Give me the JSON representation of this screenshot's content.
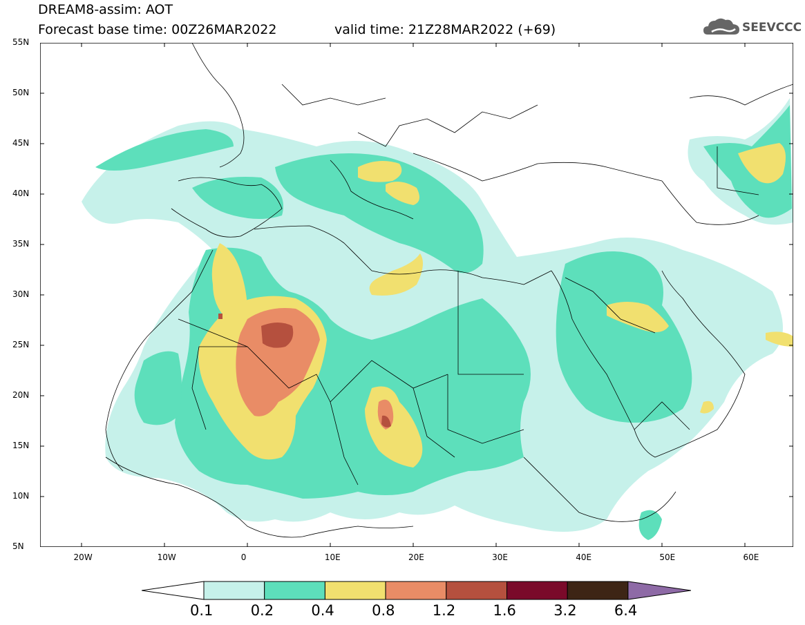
{
  "title": {
    "line1": "DREAM8-assim: AOT",
    "line2": "Forecast base time: 00Z26MAR2022",
    "valid": "valid time: 21Z28MAR2022 (+69)"
  },
  "logo": {
    "text": "SEEVCCC",
    "icon": "cloud-icon"
  },
  "axes": {
    "lat_labels": [
      "55N",
      "50N",
      "45N",
      "40N",
      "35N",
      "30N",
      "25N",
      "20N",
      "15N",
      "10N",
      "5N"
    ],
    "lon_labels": [
      "20W",
      "10W",
      "0",
      "10E",
      "20E",
      "30E",
      "40E",
      "50E",
      "60E"
    ],
    "lat_range": [
      5,
      55
    ],
    "lon_range": [
      -25,
      65
    ]
  },
  "colorbar": {
    "levels": [
      "0.1",
      "0.2",
      "0.4",
      "0.8",
      "1.2",
      "1.6",
      "3.2",
      "6.4"
    ],
    "colors": [
      "#c6f1ea",
      "#5ddfbb",
      "#f1e06f",
      "#e98c66",
      "#b5503e",
      "#7a0a2a",
      "#3d2515",
      "#8e6aa6"
    ]
  },
  "fields": {
    "ocean": "#ffffff",
    "border": "#000000"
  }
}
